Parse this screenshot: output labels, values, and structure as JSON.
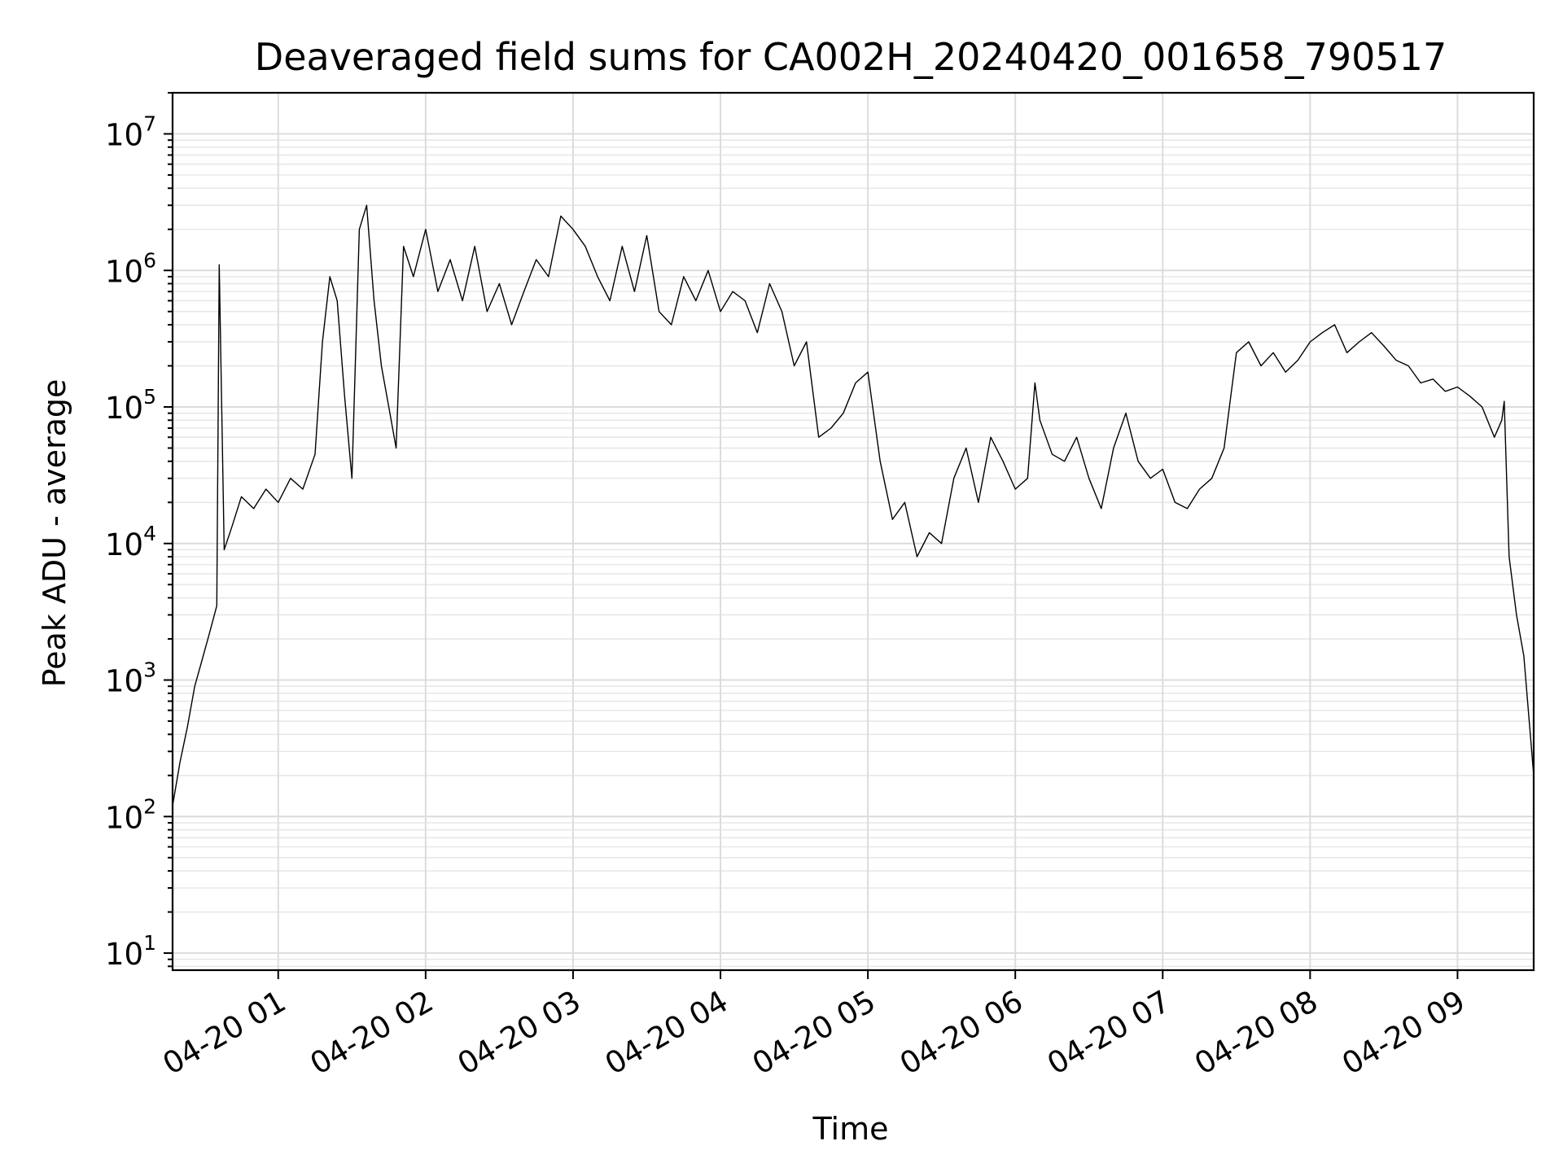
{
  "chart_data": {
    "type": "line",
    "title": "Deaveraged field sums for CA002H_20240420_001658_790517",
    "xlabel": "Time",
    "ylabel": "Peak ADU - average",
    "yscale": "log",
    "grid": true,
    "grid_minor": true,
    "xlim": [
      "04-20 00:17",
      "04-20 09:31"
    ],
    "ylim": [
      7.5,
      20000000
    ],
    "x_tick_labels": [
      "04-20 01",
      "04-20 02",
      "04-20 03",
      "04-20 04",
      "04-20 05",
      "04-20 06",
      "04-20 07",
      "04-20 08",
      "04-20 09"
    ],
    "y_tick_values": [
      10,
      100,
      1000,
      10000,
      100000,
      1000000,
      10000000
    ],
    "y_tick_labels": [
      {
        "base": "10",
        "exp": "1"
      },
      {
        "base": "10",
        "exp": "2"
      },
      {
        "base": "10",
        "exp": "3"
      },
      {
        "base": "10",
        "exp": "4"
      },
      {
        "base": "10",
        "exp": "5"
      },
      {
        "base": "10",
        "exp": "6"
      },
      {
        "base": "10",
        "exp": "7"
      }
    ],
    "series": [
      {
        "color": "#000000",
        "x": [
          "04-20 00:17",
          "04-20 00:20",
          "04-20 00:23",
          "04-20 00:26",
          "04-20 00:29",
          "04-20 00:32",
          "04-20 00:35",
          "04-20 00:36",
          "04-20 00:38",
          "04-20 00:41",
          "04-20 00:45",
          "04-20 00:50",
          "04-20 00:55",
          "04-20 01:00",
          "04-20 01:05",
          "04-20 01:10",
          "04-20 01:15",
          "04-20 01:18",
          "04-20 01:21",
          "04-20 01:24",
          "04-20 01:27",
          "04-20 01:30",
          "04-20 01:33",
          "04-20 01:36",
          "04-20 01:39",
          "04-20 01:42",
          "04-20 01:45",
          "04-20 01:48",
          "04-20 01:51",
          "04-20 01:55",
          "04-20 02:00",
          "04-20 02:05",
          "04-20 02:10",
          "04-20 02:15",
          "04-20 02:20",
          "04-20 02:25",
          "04-20 02:30",
          "04-20 02:35",
          "04-20 02:40",
          "04-20 02:45",
          "04-20 02:50",
          "04-20 02:55",
          "04-20 03:00",
          "04-20 03:05",
          "04-20 03:10",
          "04-20 03:15",
          "04-20 03:20",
          "04-20 03:25",
          "04-20 03:30",
          "04-20 03:35",
          "04-20 03:40",
          "04-20 03:45",
          "04-20 03:50",
          "04-20 03:55",
          "04-20 04:00",
          "04-20 04:05",
          "04-20 04:10",
          "04-20 04:15",
          "04-20 04:20",
          "04-20 04:25",
          "04-20 04:30",
          "04-20 04:35",
          "04-20 04:40",
          "04-20 04:45",
          "04-20 04:50",
          "04-20 04:55",
          "04-20 05:00",
          "04-20 05:05",
          "04-20 05:10",
          "04-20 05:15",
          "04-20 05:20",
          "04-20 05:25",
          "04-20 05:30",
          "04-20 05:35",
          "04-20 05:40",
          "04-20 05:45",
          "04-20 05:50",
          "04-20 05:55",
          "04-20 06:00",
          "04-20 06:05",
          "04-20 06:08",
          "04-20 06:10",
          "04-20 06:15",
          "04-20 06:20",
          "04-20 06:25",
          "04-20 06:30",
          "04-20 06:35",
          "04-20 06:40",
          "04-20 06:45",
          "04-20 06:50",
          "04-20 06:55",
          "04-20 07:00",
          "04-20 07:05",
          "04-20 07:10",
          "04-20 07:15",
          "04-20 07:20",
          "04-20 07:25",
          "04-20 07:30",
          "04-20 07:35",
          "04-20 07:40",
          "04-20 07:45",
          "04-20 07:50",
          "04-20 07:55",
          "04-20 08:00",
          "04-20 08:05",
          "04-20 08:10",
          "04-20 08:15",
          "04-20 08:20",
          "04-20 08:25",
          "04-20 08:30",
          "04-20 08:35",
          "04-20 08:40",
          "04-20 08:45",
          "04-20 08:50",
          "04-20 08:55",
          "04-20 09:00",
          "04-20 09:05",
          "04-20 09:10",
          "04-20 09:15",
          "04-20 09:18",
          "04-20 09:19",
          "04-20 09:21",
          "04-20 09:24",
          "04-20 09:27",
          "04-20 09:31"
        ],
        "values": [
          120,
          250,
          450,
          900,
          1400,
          2200,
          3500,
          1100000,
          9000,
          13000,
          22000,
          18000,
          25000,
          20000,
          30000,
          25000,
          45000,
          300000,
          900000,
          600000,
          120000,
          30000,
          2000000,
          3000000,
          600000,
          200000,
          100000,
          50000,
          1500000,
          900000,
          2000000,
          700000,
          1200000,
          600000,
          1500000,
          500000,
          800000,
          400000,
          700000,
          1200000,
          900000,
          2500000,
          2000000,
          1500000,
          900000,
          600000,
          1500000,
          700000,
          1800000,
          500000,
          400000,
          900000,
          600000,
          1000000,
          500000,
          700000,
          600000,
          350000,
          800000,
          500000,
          200000,
          300000,
          60000,
          70000,
          90000,
          150000,
          180000,
          40000,
          15000,
          20000,
          8000,
          12000,
          10000,
          30000,
          50000,
          20000,
          60000,
          40000,
          25000,
          30000,
          150000,
          80000,
          45000,
          40000,
          60000,
          30000,
          18000,
          50000,
          90000,
          40000,
          30000,
          35000,
          20000,
          18000,
          25000,
          30000,
          50000,
          250000,
          300000,
          200000,
          250000,
          180000,
          220000,
          300000,
          350000,
          400000,
          250000,
          300000,
          350000,
          280000,
          220000,
          200000,
          150000,
          160000,
          130000,
          140000,
          120000,
          100000,
          60000,
          80000,
          110000,
          8000,
          3000,
          1500,
          200
        ]
      }
    ]
  }
}
